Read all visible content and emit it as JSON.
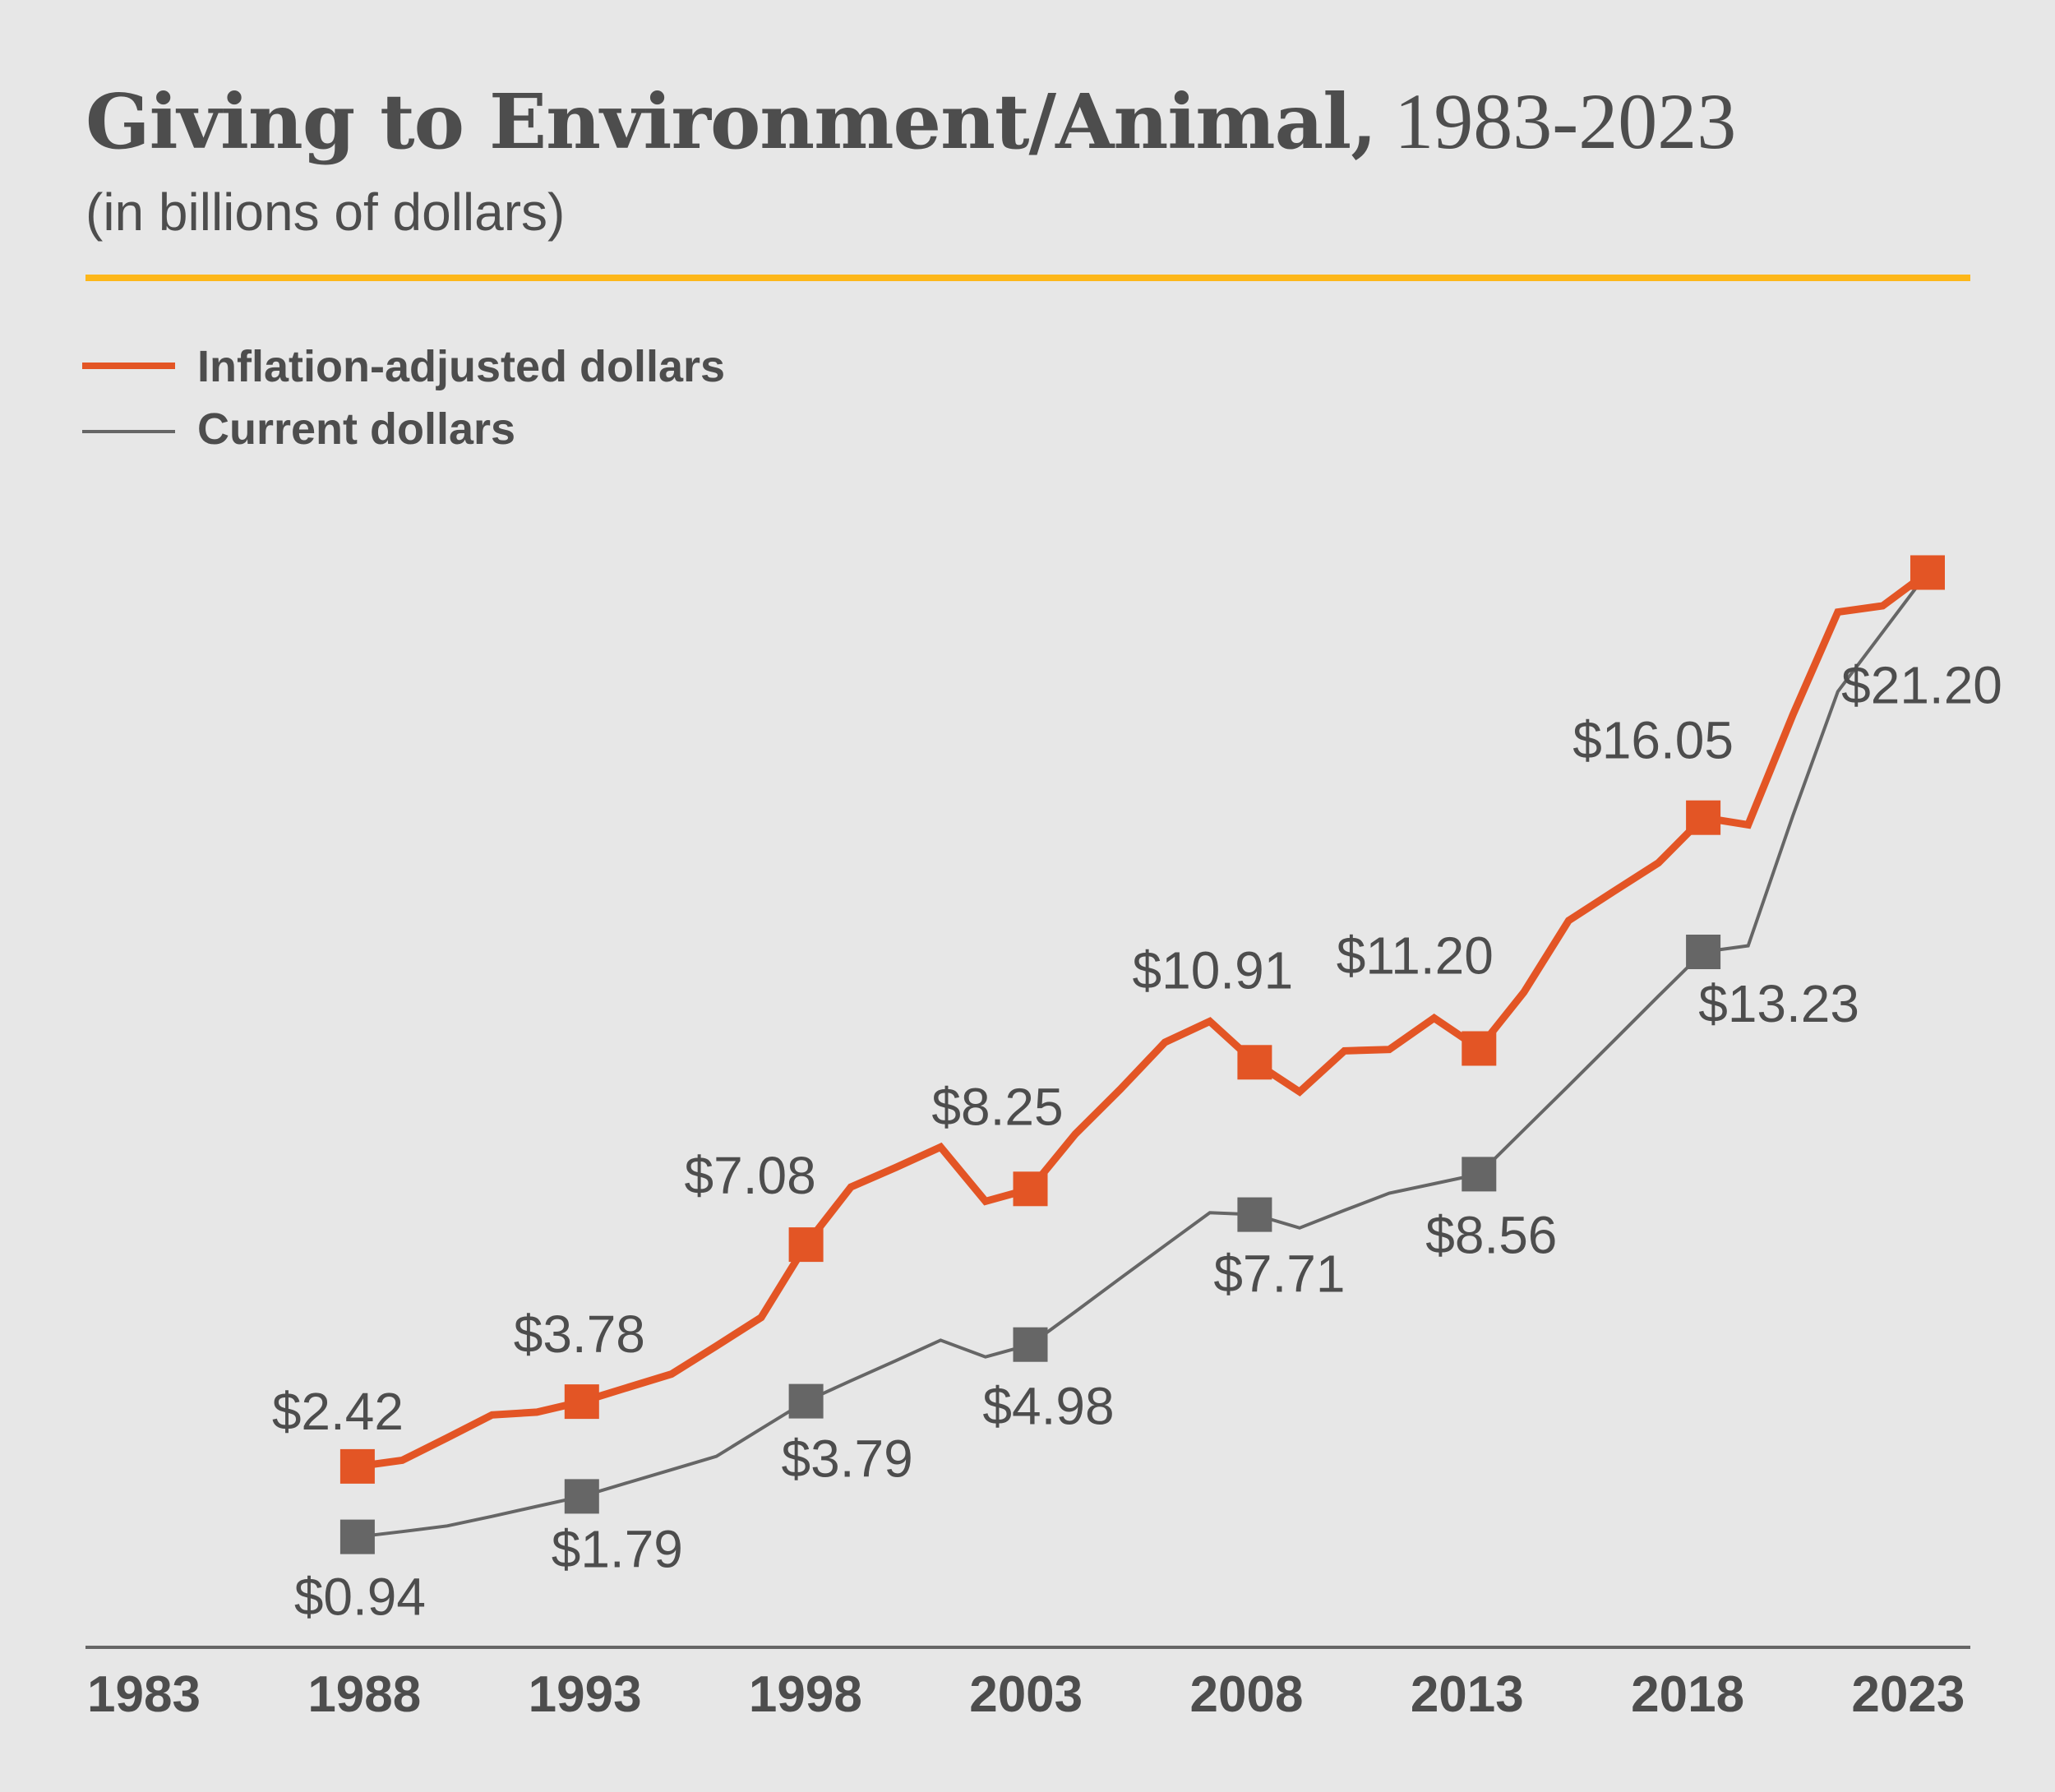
{
  "chart_data": {
    "type": "line",
    "title": "Giving to Environment/Animal,",
    "title_years": "1983-2023",
    "subtitle": "(in billions of dollars)",
    "xlabel": "",
    "ylabel": "",
    "x_ticks": [
      "1983",
      "1988",
      "1993",
      "1998",
      "2003",
      "2008",
      "2013",
      "2018",
      "2023"
    ],
    "xlim": [
      1983,
      2023
    ],
    "ylim": [
      -1.4,
      23.5
    ],
    "grid": false,
    "legend_position": "top-left",
    "colors": {
      "background": "#E7E7E7",
      "accent_rule": "#FDB71A",
      "inflation_adjusted": "#E35525",
      "current": "#666666",
      "text": "#4D4D4D",
      "axis": "#666666"
    },
    "series": [
      {
        "name": "Inflation-adjusted dollars",
        "key": "inflation_adjusted",
        "x": [
          1988,
          1989,
          1990,
          1991,
          1992,
          1993,
          1994,
          1995,
          1996,
          1997,
          1998,
          1999,
          2000,
          2001,
          2002,
          2003,
          2004,
          2005,
          2006,
          2007,
          2008,
          2009,
          2010,
          2011,
          2012,
          2013,
          2014,
          2015,
          2016,
          2017,
          2018,
          2019,
          2020,
          2021,
          2022,
          2023
        ],
        "values": [
          2.42,
          2.55,
          3.02,
          3.5,
          3.56,
          3.78,
          4.07,
          4.36,
          4.95,
          5.55,
          7.08,
          8.29,
          8.7,
          9.13,
          7.99,
          8.25,
          9.4,
          10.34,
          11.33,
          11.77,
          10.91,
          10.29,
          11.15,
          11.18,
          11.84,
          11.2,
          12.38,
          13.89,
          14.5,
          15.1,
          16.05,
          15.9,
          18.22,
          20.37,
          20.5,
          21.2
        ],
        "labeled_points": [
          {
            "x": 1988,
            "label": "$2.42"
          },
          {
            "x": 1993,
            "label": "$3.78"
          },
          {
            "x": 1998,
            "label": "$7.08"
          },
          {
            "x": 2003,
            "label": "$8.25"
          },
          {
            "x": 2008,
            "label": "$10.91"
          },
          {
            "x": 2013,
            "label": "$11.20"
          },
          {
            "x": 2018,
            "label": "$16.05"
          },
          {
            "x": 2023,
            "label": "$21.20"
          }
        ]
      },
      {
        "name": "Current dollars",
        "key": "current",
        "x": [
          1988,
          1989,
          1990,
          1991,
          1992,
          1993,
          1994,
          1995,
          1996,
          1997,
          1998,
          1999,
          2000,
          2001,
          2002,
          2003,
          2004,
          2005,
          2006,
          2007,
          2008,
          2009,
          2010,
          2011,
          2012,
          2013,
          2014,
          2015,
          2016,
          2017,
          2018,
          2019,
          2020,
          2021,
          2022,
          2023
        ],
        "values": [
          0.94,
          1.05,
          1.17,
          1.37,
          1.58,
          1.79,
          2.07,
          2.35,
          2.63,
          3.21,
          3.79,
          4.22,
          4.64,
          5.07,
          4.72,
          4.98,
          5.67,
          6.37,
          7.06,
          7.75,
          7.71,
          7.43,
          7.8,
          8.16,
          8.36,
          8.56,
          9.49,
          10.42,
          11.36,
          12.3,
          13.23,
          13.36,
          16.1,
          18.7,
          19.95,
          21.2
        ],
        "labeled_points": [
          {
            "x": 1988,
            "label": "$0.94"
          },
          {
            "x": 1993,
            "label": "$1.79"
          },
          {
            "x": 1998,
            "label": "$3.79"
          },
          {
            "x": 2003,
            "label": "$4.98"
          },
          {
            "x": 2008,
            "label": "$7.71"
          },
          {
            "x": 2013,
            "label": "$8.56"
          },
          {
            "x": 2018,
            "label": "$13.23"
          }
        ]
      }
    ]
  }
}
